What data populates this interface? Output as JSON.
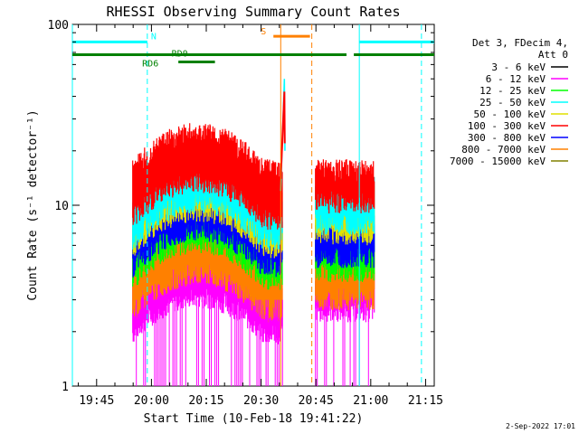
{
  "chart_data": {
    "type": "line",
    "title": "RHESSI Observing Summary Count Rates",
    "xlabel": "Start Time (10-Feb-18 19:41:22)",
    "ylabel": "Count Rate (s⁻¹ detector⁻¹)",
    "yscale": "log",
    "ylim": [
      1,
      100
    ],
    "y_ticks": [
      "1",
      "10",
      "100"
    ],
    "xlim_minutes": [
      -3,
      96
    ],
    "x_ticks": [
      "19:45",
      "20:00",
      "20:15",
      "20:30",
      "20:45",
      "21:00",
      "21:15"
    ],
    "x_tick_minutes": [
      3.63,
      18.63,
      33.63,
      48.63,
      63.63,
      78.63,
      93.63
    ],
    "grid": false,
    "legend_position": "top-right",
    "legend_header": [
      "Det 3, FDecim 4,",
      "Att 0"
    ],
    "series": [
      {
        "name": "3 - 6 keV",
        "color": "#000000"
      },
      {
        "name": "6 - 12 keV",
        "color": "#ff00ff"
      },
      {
        "name": "12 - 25 keV",
        "color": "#00ff00"
      },
      {
        "name": "25 - 50 keV",
        "color": "#00ffff"
      },
      {
        "name": "50 - 100 keV",
        "color": "#e0e000"
      },
      {
        "name": "100 - 300 keV",
        "color": "#ff0000"
      },
      {
        "name": "300 - 800 keV",
        "color": "#0000ff"
      },
      {
        "name": "800 - 7000 keV",
        "color": "#ff8000"
      },
      {
        "name": "7000 - 15000 keV",
        "color": "#808000"
      }
    ],
    "data_segments_minutes": [
      [
        13.5,
        54.5
      ],
      [
        63.5,
        79.6
      ]
    ],
    "band_levels": {
      "first_segment": {
        "red": [
          13,
          20
        ],
        "cyan": [
          10,
          15
        ],
        "yellow": [
          9,
          14
        ],
        "blue": [
          7,
          11
        ],
        "green": [
          6,
          9
        ],
        "orange": [
          4,
          6
        ],
        "magenta": [
          3,
          4.5
        ]
      },
      "second_segment": {
        "red": [
          12,
          15
        ],
        "cyan": [
          9,
          12
        ],
        "yellow": [
          8,
          11
        ],
        "blue": [
          6,
          8
        ],
        "green": [
          5,
          7
        ],
        "orange": [
          3.5,
          5
        ],
        "magenta": [
          3,
          4
        ]
      }
    },
    "spike": {
      "start_minutes": 54.0,
      "peak_minutes": 55.0,
      "peak": 50
    },
    "status_bars": [
      {
        "label": "N",
        "color": "#00ffff",
        "y": 80,
        "segments": [
          [
            -3,
            17.5
          ],
          [
            75.5,
            96
          ]
        ]
      },
      {
        "label": "RD0",
        "color": "#008000",
        "y": 68,
        "segments": [
          [
            -3,
            72
          ],
          [
            74,
            96
          ]
        ]
      },
      {
        "label": "RD6",
        "color": "#008000",
        "y": 62,
        "segments": [
          [
            26,
            36
          ]
        ]
      },
      {
        "label": "S",
        "color": "#ff8000",
        "y": 86,
        "segments": [
          [
            52,
            62
          ]
        ]
      }
    ],
    "vlines": [
      {
        "minute": 17.5,
        "color": "#00ffff",
        "style": "dashed"
      },
      {
        "minute": 92.5,
        "color": "#00ffff",
        "style": "dashed"
      },
      {
        "minute": 75.5,
        "color": "#00ffff",
        "style": "solid"
      },
      {
        "minute": -3,
        "color": "#00ffff",
        "style": "solid"
      },
      {
        "minute": 54.0,
        "color": "#ff8000",
        "style": "solid"
      },
      {
        "minute": 62.5,
        "color": "#ff8000",
        "style": "dashed"
      }
    ]
  },
  "footer_timestamp": "2-Sep-2022 17:01"
}
